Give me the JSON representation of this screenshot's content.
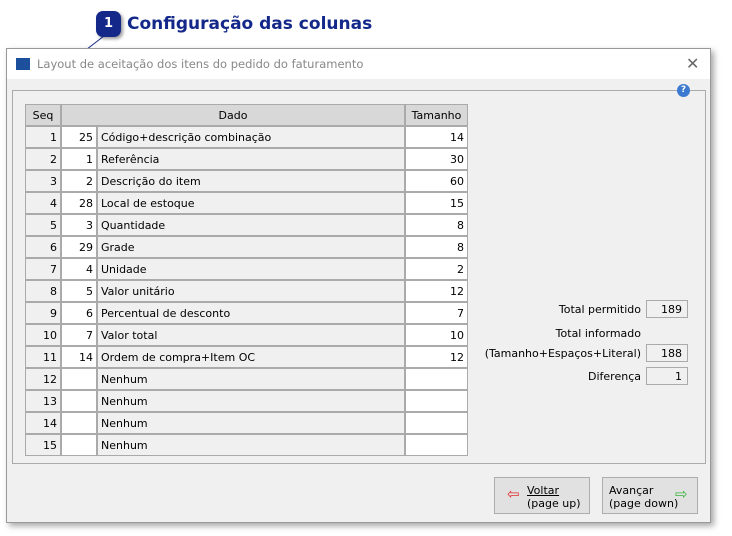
{
  "callout": {
    "number": "1",
    "text": "Configuração das colunas"
  },
  "window": {
    "title": "Layout de aceitação dos itens do pedido do faturamento",
    "close": "✕",
    "help": "?"
  },
  "table": {
    "headers": [
      "Seq",
      "Dado",
      "Tamanho"
    ],
    "rows": [
      {
        "seq": "1",
        "code": "25",
        "dado": "Código+descrição combinação",
        "tamanho": "14"
      },
      {
        "seq": "2",
        "code": "1",
        "dado": "Referência",
        "tamanho": "30"
      },
      {
        "seq": "3",
        "code": "2",
        "dado": "Descrição do item",
        "tamanho": "60"
      },
      {
        "seq": "4",
        "code": "28",
        "dado": "Local de estoque",
        "tamanho": "15"
      },
      {
        "seq": "5",
        "code": "3",
        "dado": "Quantidade",
        "tamanho": "8"
      },
      {
        "seq": "6",
        "code": "29",
        "dado": "Grade",
        "tamanho": "8"
      },
      {
        "seq": "7",
        "code": "4",
        "dado": "Unidade",
        "tamanho": "2"
      },
      {
        "seq": "8",
        "code": "5",
        "dado": "Valor unitário",
        "tamanho": "12"
      },
      {
        "seq": "9",
        "code": "6",
        "dado": "Percentual de desconto",
        "tamanho": "7"
      },
      {
        "seq": "10",
        "code": "7",
        "dado": "Valor total",
        "tamanho": "10"
      },
      {
        "seq": "11",
        "code": "14",
        "dado": "Ordem de compra+Item OC",
        "tamanho": "12"
      },
      {
        "seq": "12",
        "code": "",
        "dado": "Nenhum",
        "tamanho": ""
      },
      {
        "seq": "13",
        "code": "",
        "dado": "Nenhum",
        "tamanho": ""
      },
      {
        "seq": "14",
        "code": "",
        "dado": "Nenhum",
        "tamanho": ""
      },
      {
        "seq": "15",
        "code": "",
        "dado": "Nenhum",
        "tamanho": ""
      }
    ]
  },
  "totals": {
    "permitido_label": "Total permitido",
    "permitido": "189",
    "informado_label": "Total informado",
    "informado_sub": "(Tamanho+Espaços+Literal)",
    "informado": "188",
    "diferenca_label": "Diferença",
    "diferenca": "1"
  },
  "buttons": {
    "back_line1": "Voltar",
    "back_line2": "(page up)",
    "next_line1": "Avançar",
    "next_line2": "(page down)"
  }
}
